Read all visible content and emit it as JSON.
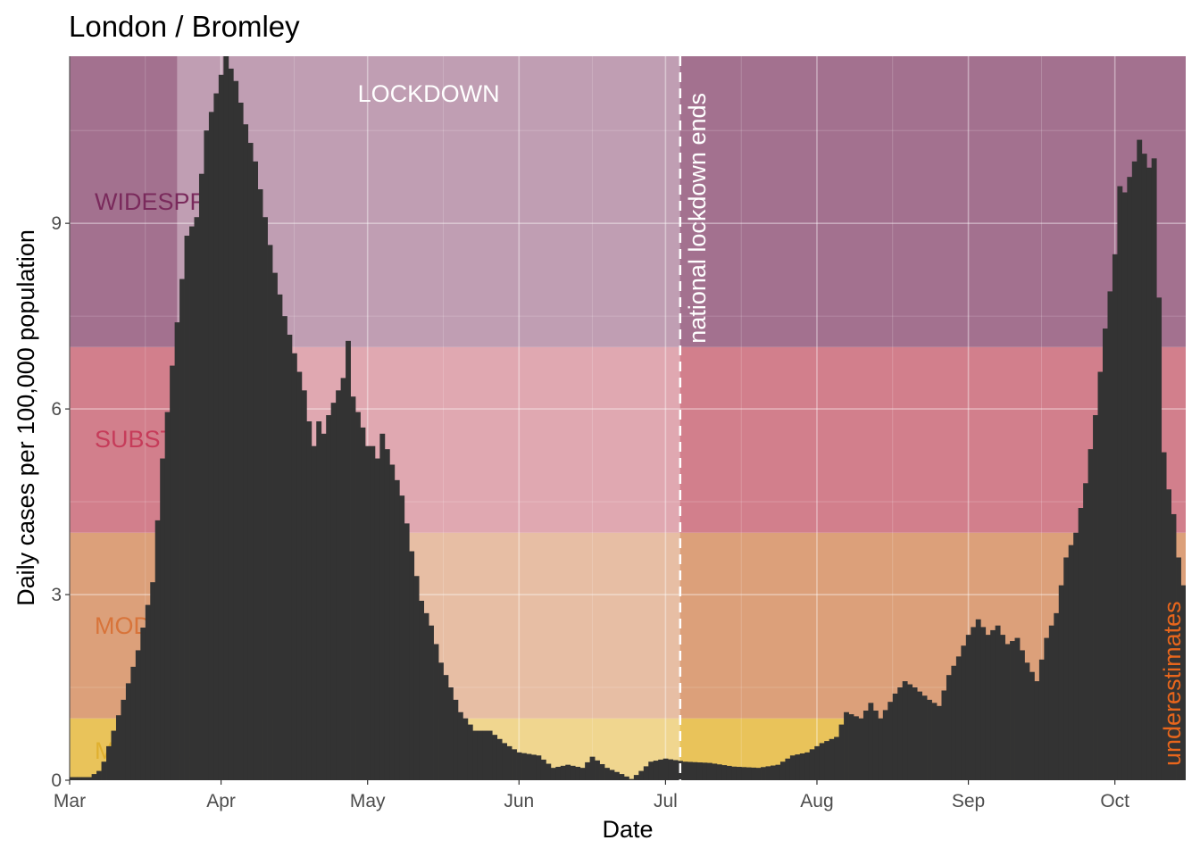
{
  "chart_data": {
    "type": "bar",
    "title": "London / Bromley",
    "xlabel": "Date",
    "ylabel": "Daily cases per 100,000 population",
    "x_start": "2020-03-01",
    "x_end": "2020-10-15",
    "ylim": [
      0,
      11.7
    ],
    "y_ticks": [
      0,
      3,
      6,
      9
    ],
    "x_ticks": [
      {
        "date": "2020-03-01",
        "label": "Mar"
      },
      {
        "date": "2020-04-01",
        "label": "Apr"
      },
      {
        "date": "2020-05-01",
        "label": "May"
      },
      {
        "date": "2020-06-01",
        "label": "Jun"
      },
      {
        "date": "2020-07-01",
        "label": "Jul"
      },
      {
        "date": "2020-08-01",
        "label": "Aug"
      },
      {
        "date": "2020-09-01",
        "label": "Sep"
      },
      {
        "date": "2020-10-01",
        "label": "Oct"
      }
    ],
    "grid": true,
    "bands": [
      {
        "label": "MINIMAL",
        "from": 0,
        "to": 1,
        "color": "#e9c35a",
        "text_color": "#e0b030"
      },
      {
        "label": "MODERATE",
        "from": 1,
        "to": 4,
        "color": "#dca07a",
        "text_color": "#d8743a"
      },
      {
        "label": "SUBSTANTIAL",
        "from": 4,
        "to": 7,
        "color": "#d27f8c",
        "text_color": "#c63c5a"
      },
      {
        "label": "WIDESPREAD",
        "from": 7,
        "to": 11.7,
        "color": "#a3718f",
        "text_color": "#7a2a5c"
      }
    ],
    "lockdown": {
      "label": "LOCKDOWN",
      "start": "2020-03-23",
      "end": "2020-07-04"
    },
    "vline": {
      "date": "2020-07-04",
      "label": "national lockdown ends"
    },
    "underestimate_label": "underestimates",
    "bar_color": "#333333",
    "anchors": [
      [
        "2020-03-01",
        0.05
      ],
      [
        "2020-03-05",
        0.05
      ],
      [
        "2020-03-07",
        0.15
      ],
      [
        "2020-03-08",
        0.3
      ],
      [
        "2020-03-10",
        0.8
      ],
      [
        "2020-03-12",
        1.3
      ],
      [
        "2020-03-15",
        2.1
      ],
      [
        "2020-03-18",
        3.2
      ],
      [
        "2020-03-20",
        5.2
      ],
      [
        "2020-03-22",
        6.7
      ],
      [
        "2020-03-24",
        8.1
      ],
      [
        "2020-03-25",
        8.8
      ],
      [
        "2020-03-27",
        9.1
      ],
      [
        "2020-03-29",
        10.5
      ],
      [
        "2020-03-31",
        11.1
      ],
      [
        "2020-04-01",
        11.4
      ],
      [
        "2020-04-02",
        11.7
      ],
      [
        "2020-04-04",
        11.3
      ],
      [
        "2020-04-06",
        10.6
      ],
      [
        "2020-04-08",
        10.0
      ],
      [
        "2020-04-10",
        9.1
      ],
      [
        "2020-04-12",
        8.2
      ],
      [
        "2020-04-14",
        7.5
      ],
      [
        "2020-04-16",
        6.9
      ],
      [
        "2020-04-18",
        6.3
      ],
      [
        "2020-04-19",
        5.8
      ],
      [
        "2020-04-20",
        5.4
      ],
      [
        "2020-04-21",
        5.8
      ],
      [
        "2020-04-22",
        5.6
      ],
      [
        "2020-04-23",
        5.9
      ],
      [
        "2020-04-25",
        6.3
      ],
      [
        "2020-04-26",
        6.5
      ],
      [
        "2020-04-27",
        7.1
      ],
      [
        "2020-04-28",
        6.2
      ],
      [
        "2020-04-30",
        5.7
      ],
      [
        "2020-05-01",
        5.4
      ],
      [
        "2020-05-02",
        5.4
      ],
      [
        "2020-05-03",
        5.2
      ],
      [
        "2020-05-04",
        5.6
      ],
      [
        "2020-05-06",
        5.1
      ],
      [
        "2020-05-08",
        4.6
      ],
      [
        "2020-05-10",
        3.7
      ],
      [
        "2020-05-12",
        2.9
      ],
      [
        "2020-05-14",
        2.5
      ],
      [
        "2020-05-16",
        1.9
      ],
      [
        "2020-05-18",
        1.5
      ],
      [
        "2020-05-20",
        1.1
      ],
      [
        "2020-05-23",
        0.8
      ],
      [
        "2020-05-26",
        0.8
      ],
      [
        "2020-05-29",
        0.6
      ],
      [
        "2020-06-01",
        0.45
      ],
      [
        "2020-06-05",
        0.4
      ],
      [
        "2020-06-08",
        0.2
      ],
      [
        "2020-06-11",
        0.25
      ],
      [
        "2020-06-14",
        0.2
      ],
      [
        "2020-06-16",
        0.38
      ],
      [
        "2020-06-19",
        0.2
      ],
      [
        "2020-06-22",
        0.1
      ],
      [
        "2020-06-24",
        0.02
      ],
      [
        "2020-06-26",
        0.15
      ],
      [
        "2020-06-28",
        0.3
      ],
      [
        "2020-07-01",
        0.35
      ],
      [
        "2020-07-05",
        0.3
      ],
      [
        "2020-07-10",
        0.28
      ],
      [
        "2020-07-15",
        0.22
      ],
      [
        "2020-07-20",
        0.2
      ],
      [
        "2020-07-24",
        0.25
      ],
      [
        "2020-07-27",
        0.4
      ],
      [
        "2020-07-30",
        0.45
      ],
      [
        "2020-08-02",
        0.6
      ],
      [
        "2020-08-05",
        0.7
      ],
      [
        "2020-08-07",
        1.1
      ],
      [
        "2020-08-10",
        1.0
      ],
      [
        "2020-08-12",
        1.25
      ],
      [
        "2020-08-14",
        1.0
      ],
      [
        "2020-08-17",
        1.4
      ],
      [
        "2020-08-19",
        1.6
      ],
      [
        "2020-08-21",
        1.5
      ],
      [
        "2020-08-24",
        1.3
      ],
      [
        "2020-08-26",
        1.2
      ],
      [
        "2020-08-28",
        1.7
      ],
      [
        "2020-08-30",
        2.0
      ],
      [
        "2020-09-01",
        2.35
      ],
      [
        "2020-09-03",
        2.6
      ],
      [
        "2020-09-05",
        2.35
      ],
      [
        "2020-09-07",
        2.5
      ],
      [
        "2020-09-09",
        2.2
      ],
      [
        "2020-09-11",
        2.3
      ],
      [
        "2020-09-13",
        1.9
      ],
      [
        "2020-09-15",
        1.6
      ],
      [
        "2020-09-17",
        2.3
      ],
      [
        "2020-09-19",
        2.7
      ],
      [
        "2020-09-21",
        3.6
      ],
      [
        "2020-09-23",
        4.0
      ],
      [
        "2020-09-25",
        4.8
      ],
      [
        "2020-09-27",
        5.9
      ],
      [
        "2020-09-29",
        7.3
      ],
      [
        "2020-10-01",
        8.5
      ],
      [
        "2020-10-02",
        9.6
      ],
      [
        "2020-10-03",
        9.5
      ],
      [
        "2020-10-05",
        10.0
      ],
      [
        "2020-10-06",
        10.35
      ],
      [
        "2020-10-08",
        9.9
      ],
      [
        "2020-10-09",
        10.05
      ],
      [
        "2020-10-10",
        7.8
      ],
      [
        "2020-10-11",
        5.3
      ],
      [
        "2020-10-12",
        4.7
      ],
      [
        "2020-10-13",
        4.3
      ],
      [
        "2020-10-14",
        3.6
      ],
      [
        "2020-10-15",
        3.15
      ]
    ]
  }
}
